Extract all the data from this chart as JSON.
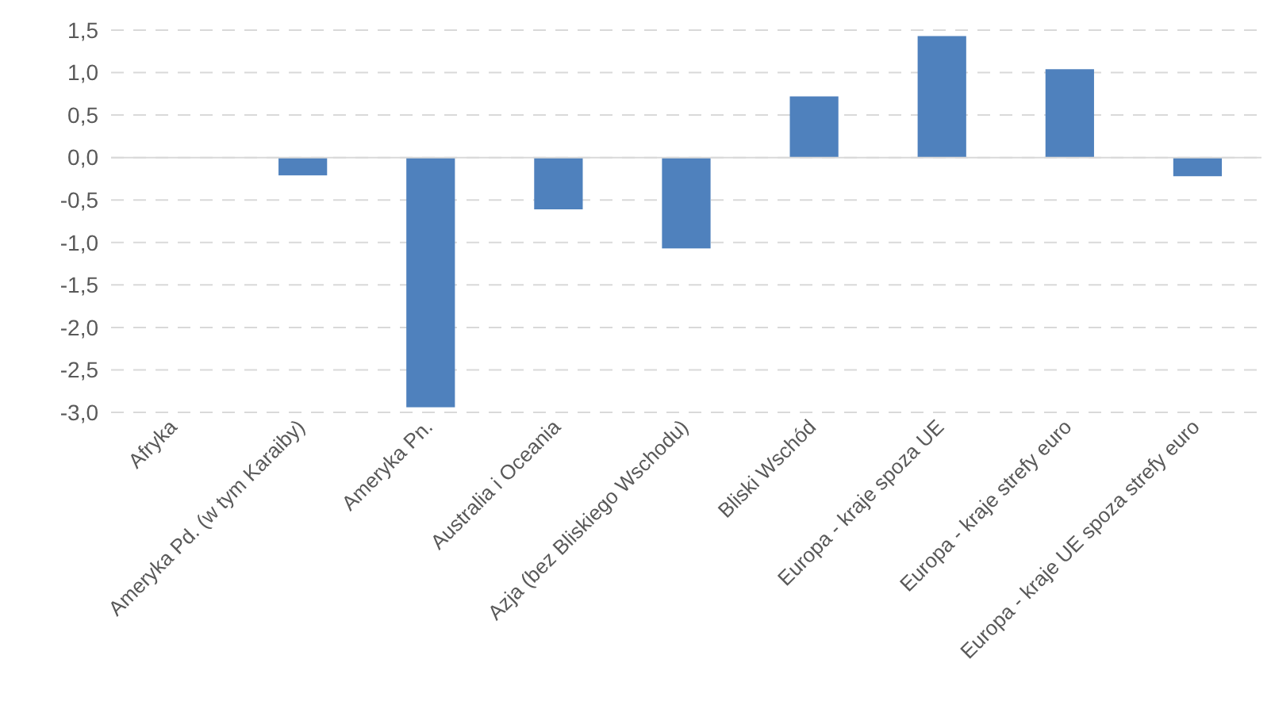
{
  "chart_data": {
    "type": "bar",
    "categories": [
      "Afryka",
      "Ameryka Pd. (w tym Karaiby)",
      "Ameryka Pn.",
      "Australia i Oceania",
      "Azja (bez Bliskiego Wschodu)",
      "Bliski Wschód",
      "Europa - kraje spoza UE",
      "Europa - kraje strefy euro",
      "Europa - kraje UE spoza strefy euro"
    ],
    "values": [
      0,
      -0.21,
      -2.94,
      -0.61,
      -1.07,
      0.72,
      1.43,
      1.04,
      -0.22
    ],
    "color": "#4f81bd",
    "ylim": [
      -3,
      1.5
    ],
    "yticks": [
      {
        "value": -3,
        "label": "-3,0"
      },
      {
        "value": -2.5,
        "label": "-2,5"
      },
      {
        "value": -2,
        "label": "-2,0"
      },
      {
        "value": -1.5,
        "label": "-1,5"
      },
      {
        "value": -1,
        "label": "-1,0"
      },
      {
        "value": -0.5,
        "label": "-0,5"
      },
      {
        "value": 0,
        "label": "0,0"
      },
      {
        "value": 0.5,
        "label": "0,5"
      },
      {
        "value": 1,
        "label": "1,0"
      },
      {
        "value": 1.5,
        "label": "1,5"
      }
    ],
    "grid": true
  }
}
